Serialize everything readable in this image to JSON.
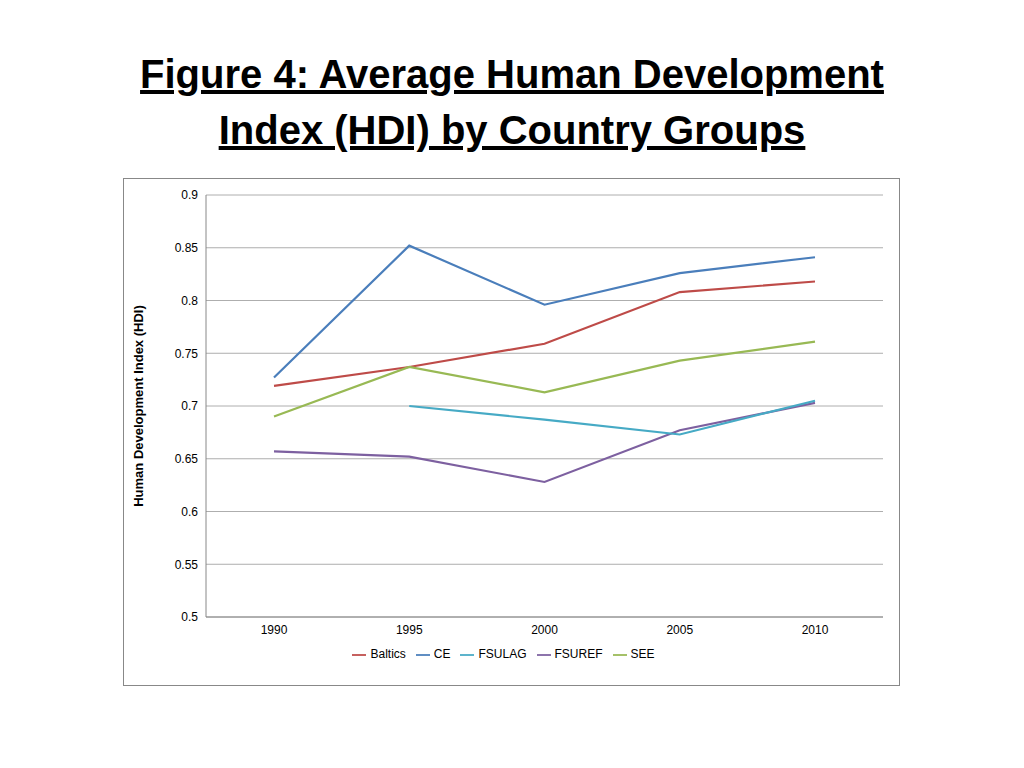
{
  "chart_data": {
    "type": "line",
    "title": "Figure 4: Average Human Development Index (HDI) by Country Groups",
    "y_label": "Human Development Index (HDI)",
    "categories": [
      "1990",
      "1995",
      "2000",
      "2005",
      "2010"
    ],
    "series": [
      {
        "name": "CE",
        "color": "#4a7ebb",
        "values": [
          0.727,
          0.852,
          0.796,
          0.826,
          0.841
        ]
      },
      {
        "name": "Baltics",
        "color": "#be4b48",
        "values": [
          0.719,
          0.737,
          0.759,
          0.808,
          0.818
        ]
      },
      {
        "name": "SEE",
        "color": "#98b954",
        "values": [
          0.69,
          0.737,
          0.713,
          0.743,
          0.761
        ]
      },
      {
        "name": "FSUREF",
        "color": "#7d60a0",
        "values": [
          0.657,
          0.652,
          0.628,
          0.677,
          0.703
        ]
      },
      {
        "name": "FSULAG",
        "color": "#46aac5",
        "values": [
          null,
          0.7,
          0.687,
          0.673,
          0.705
        ]
      }
    ],
    "ylim": [
      0.5,
      0.9
    ],
    "yticks": [
      0.5,
      0.55,
      0.6,
      0.65,
      0.7,
      0.75,
      0.8,
      0.85,
      0.9
    ],
    "grid": true,
    "legend": "bottom"
  }
}
